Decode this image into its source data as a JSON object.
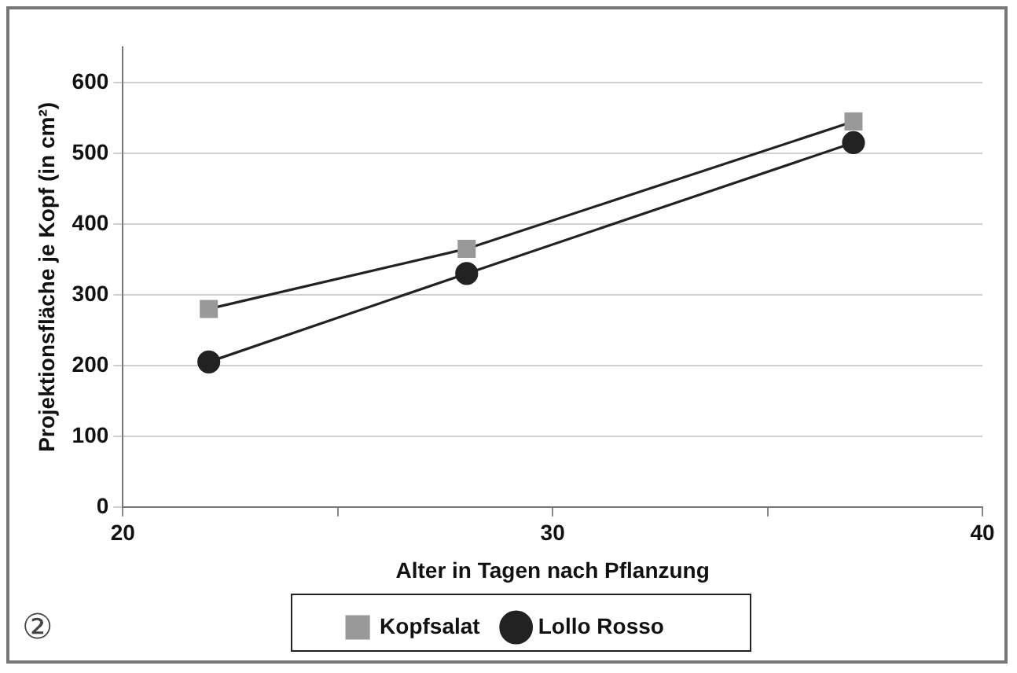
{
  "chart_data": {
    "type": "line",
    "xlabel": "Alter in Tagen nach Pflanzung",
    "ylabel": "Projektionsfläche je Kopf (in cm²)",
    "x": [
      22,
      28,
      37
    ],
    "series": [
      {
        "name": "Kopfsalat",
        "color": "#999999",
        "marker": "square",
        "values": [
          280,
          365,
          545
        ]
      },
      {
        "name": "Lollo Rosso",
        "color": "#222222",
        "marker": "circle",
        "values": [
          205,
          330,
          515
        ]
      }
    ],
    "xlim": [
      20,
      40
    ],
    "xticks": [
      20,
      {
        "value": 25,
        "label": null
      },
      30,
      {
        "value": 35,
        "label": null
      },
      40
    ],
    "ylim": [
      0,
      650
    ],
    "yticks": [
      0,
      100,
      200,
      300,
      400,
      500,
      600
    ],
    "grid": "y",
    "legend": "bottom",
    "line_style": "solid",
    "annotations": [
      "②"
    ]
  }
}
